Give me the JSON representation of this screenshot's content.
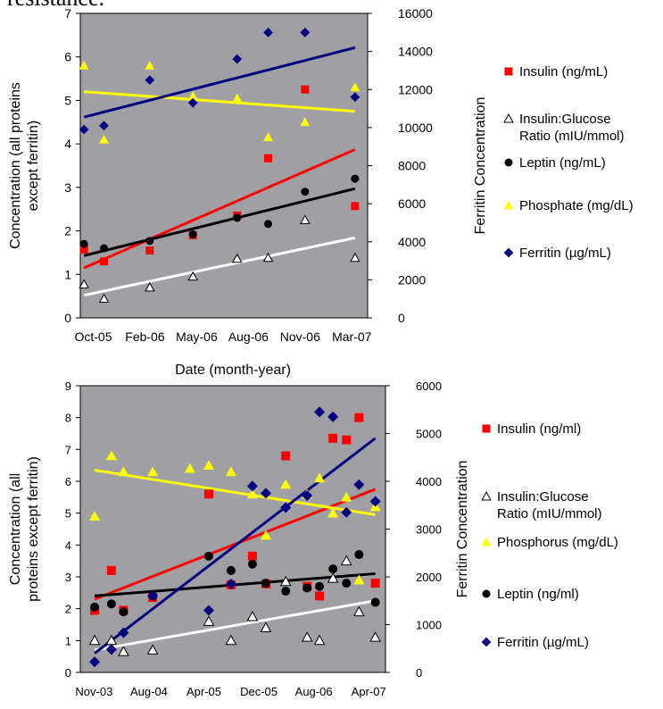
{
  "heading_fragment": "resistance.",
  "chart_data": [
    {
      "type": "scatter",
      "xlabel": "Date (month-year)",
      "ylabel": "Concentration (all proteins except ferritin)",
      "y2label": "Ferritin Concentration",
      "ylim": [
        0,
        7
      ],
      "y2lim": [
        0,
        16000
      ],
      "yticks": [
        "0",
        "1",
        "2",
        "3",
        "4",
        "5",
        "6",
        "7"
      ],
      "y2ticks": [
        "0",
        "2000",
        "4000",
        "6000",
        "8000",
        "10000",
        "12000",
        "14000",
        "16000"
      ],
      "xticks": [
        "Oct-05",
        "Feb-06",
        "May-06",
        "Aug-06",
        "Nov-06",
        "Mar-07"
      ],
      "xdomain": [
        "2005-10-01",
        "2007-03-31"
      ],
      "legend_position": "right",
      "series": [
        {
          "name": "Insulin (ng/mL)",
          "marker": "square",
          "color": "#ff0000",
          "axis": "left",
          "x": [
            "2005-10-08",
            "2005-11-15",
            "2006-02-10",
            "2006-05-03",
            "2006-07-26",
            "2006-09-23",
            "2006-12-02",
            "2007-03-07"
          ],
          "y": [
            1.57,
            1.3,
            1.55,
            1.9,
            2.35,
            3.67,
            5.25,
            2.57
          ],
          "trend": {
            "color": "#ff0000",
            "y_start": 1.15,
            "y_end": 3.87
          }
        },
        {
          "name": "Insulin:Glucose Ratio (mIU/mmol)",
          "marker": "triangle-open",
          "color": "#000000",
          "axis": "left",
          "x": [
            "2005-10-08",
            "2005-11-15",
            "2006-02-10",
            "2006-05-03",
            "2006-07-26",
            "2006-09-23",
            "2006-12-02",
            "2007-03-07"
          ],
          "y": [
            0.77,
            0.44,
            0.7,
            0.95,
            1.36,
            1.38,
            2.25,
            1.38
          ],
          "trend": {
            "color": "#ffffff",
            "y_start": 0.52,
            "y_end": 1.84
          }
        },
        {
          "name": "Leptin (ng/mL)",
          "marker": "circle",
          "color": "#000000",
          "axis": "left",
          "x": [
            "2005-10-08",
            "2005-11-15",
            "2006-02-10",
            "2006-05-03",
            "2006-07-26",
            "2006-09-23",
            "2006-12-02",
            "2007-03-07"
          ],
          "y": [
            1.7,
            1.6,
            1.77,
            1.92,
            2.3,
            2.16,
            2.9,
            3.2
          ],
          "trend": {
            "color": "#000000",
            "y_start": 1.43,
            "y_end": 2.97
          }
        },
        {
          "name": "Phosphate (mg/dL)",
          "marker": "triangle",
          "color": "#ffff00",
          "axis": "left",
          "x": [
            "2005-10-08",
            "2005-11-15",
            "2006-02-10",
            "2006-05-03",
            "2006-07-26",
            "2006-09-23",
            "2006-12-02",
            "2007-03-07"
          ],
          "y": [
            5.8,
            4.1,
            5.8,
            5.1,
            5.05,
            4.15,
            4.5,
            5.3
          ],
          "trend": {
            "color": "#ffff00",
            "y_start": 5.2,
            "y_end": 4.75
          }
        },
        {
          "name": "Ferritin (µg/mL)",
          "marker": "diamond",
          "color": "#000080",
          "axis": "right",
          "x": [
            "2005-10-08",
            "2005-11-15",
            "2006-02-10",
            "2006-05-03",
            "2006-07-26",
            "2006-09-23",
            "2006-12-02",
            "2007-03-07"
          ],
          "y": [
            9900,
            10100,
            12500,
            11300,
            13600,
            15000,
            15000,
            11600
          ],
          "trend": {
            "color": "#000080",
            "y_start": 10550,
            "y_end": 14200
          }
        }
      ]
    },
    {
      "type": "scatter",
      "ylabel": "Concentration (all proteins except ferritin)",
      "y2label": "Ferritin Concentration",
      "ylim": [
        0,
        9
      ],
      "y2lim": [
        0,
        6000
      ],
      "yticks": [
        "0",
        "1",
        "2",
        "3",
        "4",
        "5",
        "6",
        "7",
        "8",
        "9"
      ],
      "y2ticks": [
        "0",
        "1000",
        "2000",
        "3000",
        "4000",
        "5000",
        "6000"
      ],
      "xticks": [
        "Nov-03",
        "Aug-04",
        "Apr-05",
        "Dec-05",
        "Aug-06",
        "Apr-07"
      ],
      "xdomain": [
        "2003-09-01",
        "2007-06-15"
      ],
      "legend_position": "right",
      "series": [
        {
          "name": "Insulin (ng/ml)",
          "marker": "square",
          "color": "#ff0000",
          "axis": "left",
          "x": [
            "2003-11-05",
            "2004-01-20",
            "2004-03-15",
            "2004-07-25",
            "2005-04-05",
            "2005-07-15",
            "2005-10-20",
            "2005-12-20",
            "2006-03-20",
            "2006-06-25",
            "2006-08-20",
            "2006-10-20",
            "2006-12-20",
            "2007-02-15",
            "2007-04-30"
          ],
          "y": [
            1.95,
            3.2,
            1.95,
            2.35,
            5.6,
            2.75,
            3.65,
            2.78,
            6.8,
            2.7,
            2.4,
            7.35,
            7.3,
            8.0,
            2.8
          ],
          "trend": {
            "color": "#ff0000",
            "y_start": 2.3,
            "y_end": 5.75
          }
        },
        {
          "name": "Insulin:Glucose Ratio (mIU/mmol)",
          "marker": "triangle-open",
          "color": "#000000",
          "axis": "left",
          "x": [
            "2003-11-05",
            "2004-01-20",
            "2004-03-15",
            "2004-07-25",
            "2005-04-05",
            "2005-07-15",
            "2005-10-20",
            "2005-12-20",
            "2006-03-20",
            "2006-06-25",
            "2006-08-20",
            "2006-10-20",
            "2006-12-20",
            "2007-02-15",
            "2007-04-30"
          ],
          "y": [
            1.0,
            1.0,
            0.65,
            0.7,
            1.6,
            1.0,
            1.75,
            1.4,
            2.85,
            1.1,
            1.0,
            2.95,
            3.5,
            1.9,
            1.1
          ],
          "trend": {
            "color": "#ffffff",
            "y_start": 0.7,
            "y_end": 2.25
          }
        },
        {
          "name": "Phosphorus (mg/dL)",
          "marker": "triangle",
          "color": "#ffff00",
          "axis": "left",
          "x": [
            "2003-11-05",
            "2004-01-20",
            "2004-03-15",
            "2004-07-25",
            "2005-01-10",
            "2005-04-05",
            "2005-07-15",
            "2005-10-20",
            "2005-12-20",
            "2006-03-20",
            "2006-06-25",
            "2006-08-20",
            "2006-10-20",
            "2006-12-20",
            "2007-02-15",
            "2007-04-30"
          ],
          "y": [
            4.9,
            6.8,
            6.3,
            6.3,
            6.4,
            6.5,
            6.3,
            5.6,
            4.3,
            5.9,
            5.6,
            6.1,
            5.0,
            5.5,
            2.9,
            5.2
          ],
          "trend": {
            "color": "#ffff00",
            "y_start": 6.35,
            "y_end": 4.95
          }
        },
        {
          "name": "Leptin (ng/ml)",
          "marker": "circle",
          "color": "#000000",
          "axis": "left",
          "x": [
            "2003-11-05",
            "2004-01-20",
            "2004-03-15",
            "2004-07-25",
            "2005-04-05",
            "2005-07-15",
            "2005-10-20",
            "2005-12-20",
            "2006-03-20",
            "2006-06-25",
            "2006-08-20",
            "2006-10-20",
            "2006-12-20",
            "2007-02-15",
            "2007-04-30"
          ],
          "y": [
            2.05,
            2.15,
            1.9,
            2.4,
            3.65,
            3.2,
            3.4,
            2.8,
            2.55,
            2.65,
            2.7,
            3.25,
            2.8,
            3.7,
            2.2
          ],
          "trend": {
            "color": "#000000",
            "y_start": 2.4,
            "y_end": 3.1
          }
        },
        {
          "name": "Ferritin (µg/mL)",
          "marker": "diamond",
          "color": "#000080",
          "axis": "right",
          "x": [
            "2003-11-05",
            "2004-01-20",
            "2004-03-15",
            "2004-07-25",
            "2005-04-05",
            "2005-07-15",
            "2005-10-20",
            "2005-12-20",
            "2006-03-20",
            "2006-06-25",
            "2006-08-20",
            "2006-10-20",
            "2006-12-20",
            "2007-02-15",
            "2007-04-30"
          ],
          "y": [
            220,
            480,
            830,
            1600,
            1300,
            1850,
            3900,
            3750,
            3450,
            3700,
            5450,
            5350,
            3350,
            3930,
            3580
          ],
          "trend": {
            "color": "#000080",
            "y_start": 400,
            "y_end": 4900
          }
        }
      ]
    }
  ]
}
